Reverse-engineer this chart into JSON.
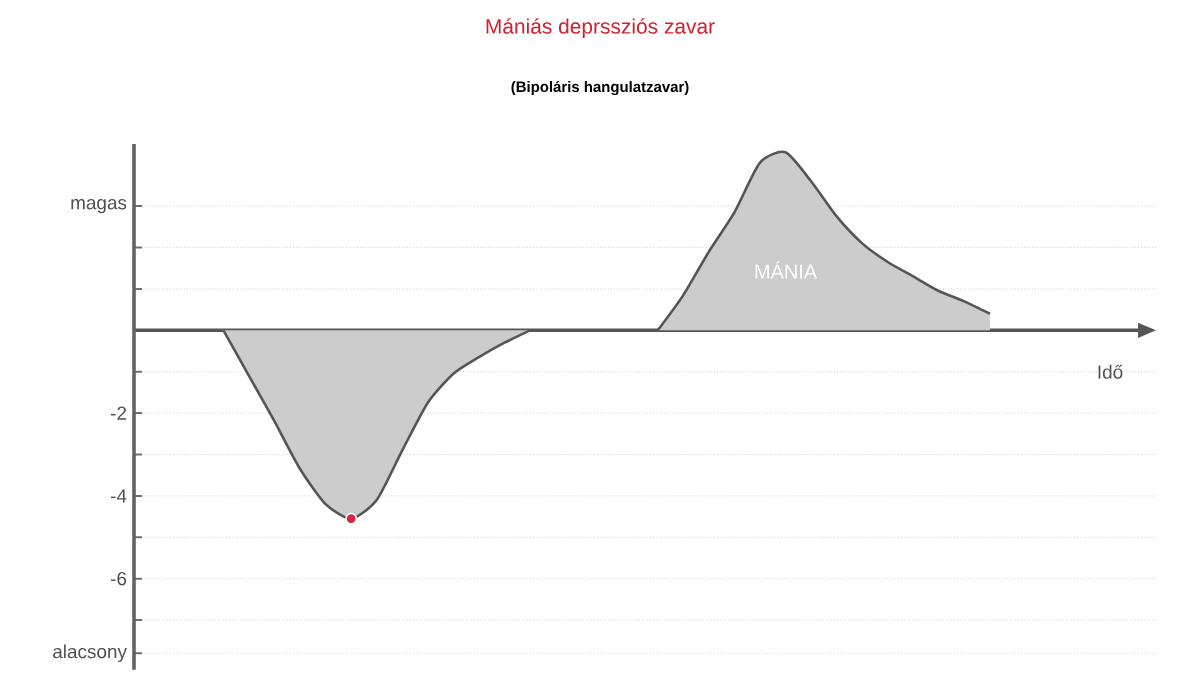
{
  "chart_data": {
    "type": "area",
    "title": "Mániás deprssziós zavar",
    "subtitle": "(Bipoláris hangulatzavar)",
    "xlabel": "Idő",
    "categories": [
      null,
      null,
      null,
      null,
      null,
      null,
      null,
      null,
      null,
      null,
      null,
      null,
      null,
      null,
      null,
      null,
      null,
      null,
      null,
      null,
      null,
      null,
      null,
      null,
      null,
      null,
      null,
      null,
      null,
      null,
      null,
      null,
      null,
      null,
      null,
      null,
      null,
      null,
      null,
      null
    ],
    "series": [
      {
        "color": "#cccccc",
        "values": [
          null,
          null,
          null,
          0,
          -1.1,
          -2.2,
          -3.35,
          -4.2,
          -4.55,
          -4.1,
          -2.9,
          -1.75,
          -1.05,
          -0.65,
          -0.3,
          0,
          null,
          null,
          null,
          null,
          null,
          null,
          null,
          null,
          null,
          null,
          null,
          null,
          null,
          null,
          null,
          null,
          null,
          null,
          null,
          null,
          null,
          null,
          null,
          null
        ]
      },
      {
        "name": "MÁNIA",
        "color": "#cccccc",
        "values": [
          null,
          null,
          null,
          null,
          null,
          null,
          null,
          null,
          null,
          null,
          null,
          null,
          null,
          null,
          null,
          null,
          null,
          null,
          null,
          null,
          0,
          0.85,
          1.9,
          2.85,
          4.05,
          4.3,
          3.6,
          2.75,
          2.1,
          1.65,
          1.3,
          0.95,
          0.7,
          0.4,
          null,
          null,
          null,
          null,
          null,
          null
        ]
      },
      {
        "type": "scatter",
        "color": "#d7263d",
        "values": [
          null,
          null,
          null,
          null,
          null,
          null,
          null,
          null,
          -4.55,
          null,
          null,
          null,
          null,
          null,
          null,
          null,
          null,
          null,
          null,
          null,
          null,
          null,
          null,
          null,
          null,
          null,
          null,
          null,
          null,
          null,
          null,
          null,
          null,
          null,
          null,
          null,
          null,
          null,
          null,
          null
        ]
      }
    ],
    "ylim": [
      -8.2,
      4.5
    ],
    "yticks": [
      {
        "value": 3,
        "label": "magas"
      },
      {
        "value": 2,
        "label": null
      },
      {
        "value": 1,
        "label": null
      },
      {
        "value": -1,
        "label": null
      },
      -2,
      {
        "value": -3,
        "label": null
      },
      -4,
      {
        "value": -5,
        "label": null
      },
      -6,
      {
        "value": -7,
        "label": null
      },
      {
        "value": -7.8,
        "label": "alacsony"
      }
    ],
    "grid": "y",
    "tick_labels": "y"
  }
}
